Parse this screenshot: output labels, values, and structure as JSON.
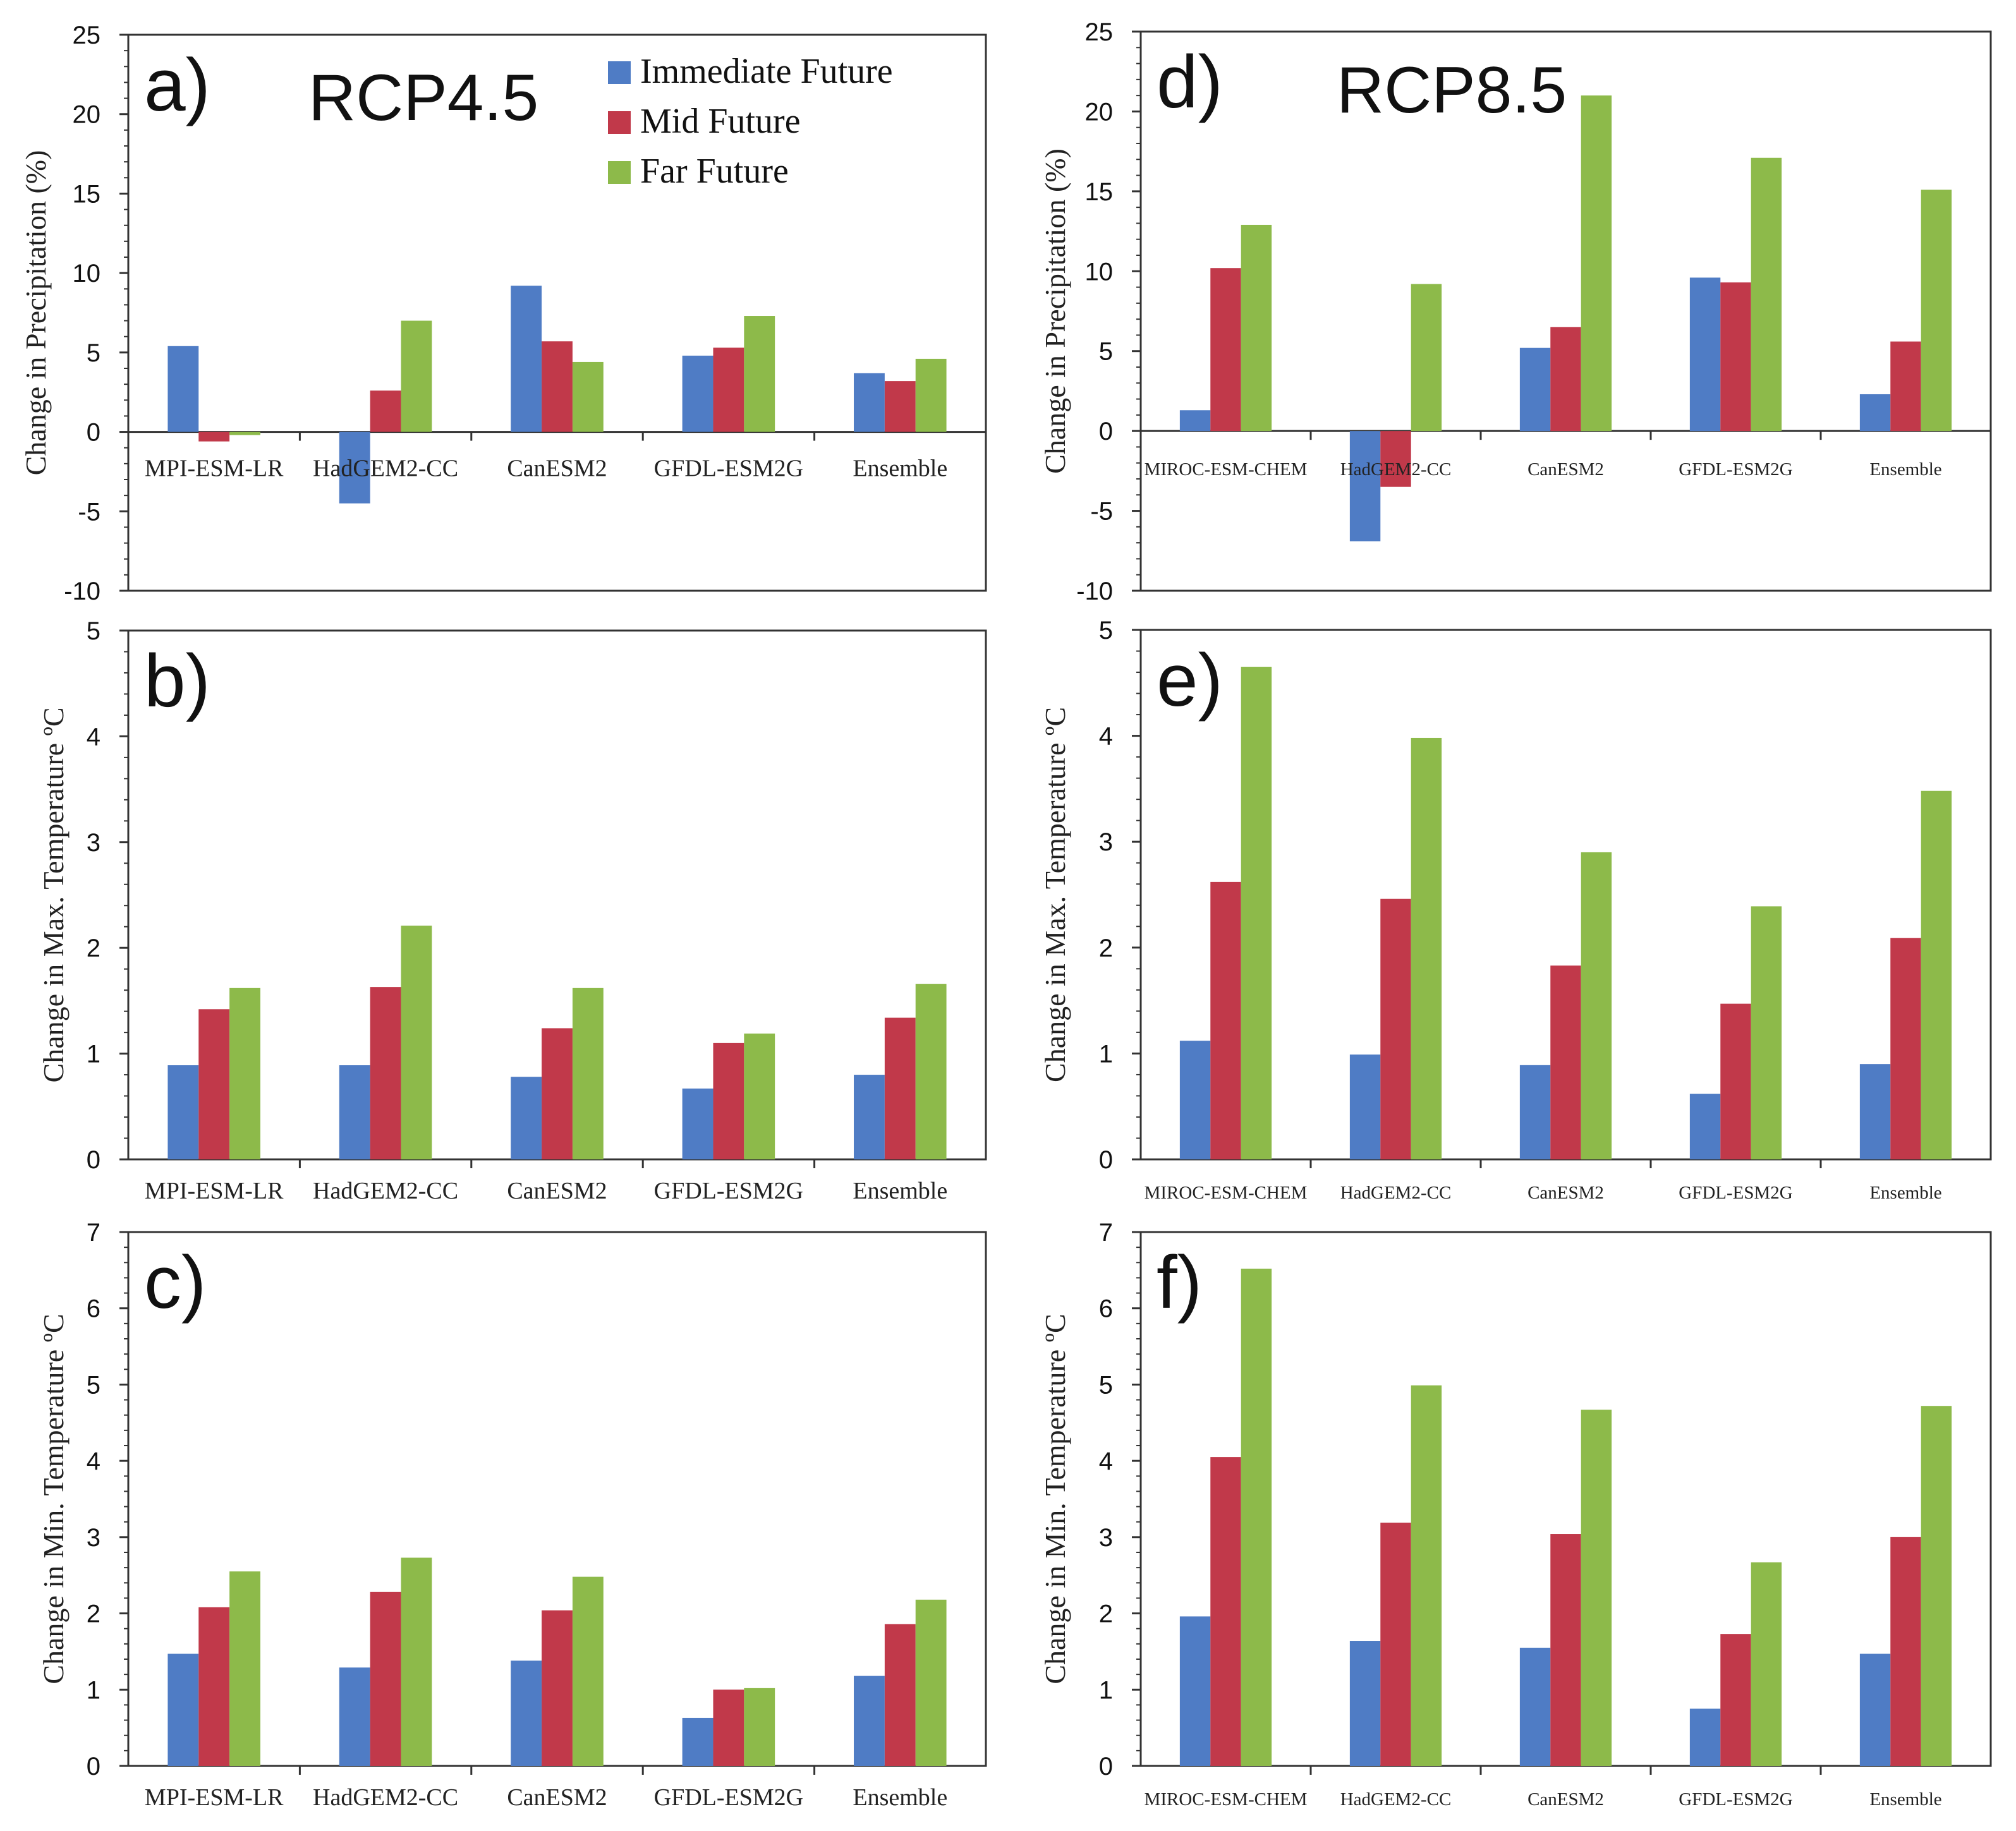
{
  "colors": {
    "immediate": "#4F7CC5",
    "mid": "#C1394A",
    "far": "#8DBA4A",
    "axis": "#333333"
  },
  "legend": [
    {
      "key": "immediate",
      "label": "Immediate Future"
    },
    {
      "key": "mid",
      "label": "Mid Future"
    },
    {
      "key": "far",
      "label": "Far Future"
    }
  ],
  "scenarios": {
    "left": "RCP4.5",
    "right": "RCP8.5"
  },
  "chart_data": [
    {
      "id": "a",
      "panel_label": "a)",
      "type": "bar",
      "scenario": "RCP4.5",
      "ylabel": "Change in Precipitation (%)",
      "ylim": [
        -10,
        25
      ],
      "yticks": [
        -10,
        -5,
        0,
        5,
        10,
        15,
        20,
        25
      ],
      "categories": [
        "MPI-ESM-LR",
        "HadGEM2-CC",
        "CanESM2",
        "GFDL-ESM2G",
        "Ensemble"
      ],
      "series": [
        {
          "name": "Immediate Future",
          "values": [
            5.4,
            -4.5,
            9.2,
            4.8,
            3.7
          ]
        },
        {
          "name": "Mid Future",
          "values": [
            -0.6,
            2.6,
            5.7,
            5.3,
            3.2
          ]
        },
        {
          "name": "Far Future",
          "values": [
            -0.2,
            7.0,
            4.4,
            7.3,
            4.6
          ]
        }
      ]
    },
    {
      "id": "b",
      "panel_label": "b)",
      "type": "bar",
      "scenario": "RCP4.5",
      "ylabel": "Change in Max. Temperature ºC",
      "ylim": [
        0,
        5
      ],
      "yticks": [
        0,
        1,
        2,
        3,
        4,
        5
      ],
      "categories": [
        "MPI-ESM-LR",
        "HadGEM2-CC",
        "CanESM2",
        "GFDL-ESM2G",
        "Ensemble"
      ],
      "series": [
        {
          "name": "Immediate Future",
          "values": [
            0.89,
            0.89,
            0.78,
            0.67,
            0.8
          ]
        },
        {
          "name": "Mid Future",
          "values": [
            1.42,
            1.63,
            1.24,
            1.1,
            1.34
          ]
        },
        {
          "name": "Far Future",
          "values": [
            1.62,
            2.21,
            1.62,
            1.19,
            1.66
          ]
        }
      ]
    },
    {
      "id": "c",
      "panel_label": "c)",
      "type": "bar",
      "scenario": "RCP4.5",
      "ylabel": "Change in Min. Temperature ºC",
      "ylim": [
        0,
        7
      ],
      "yticks": [
        0,
        1,
        2,
        3,
        4,
        5,
        6,
        7
      ],
      "categories": [
        "MPI-ESM-LR",
        "HadGEM2-CC",
        "CanESM2",
        "GFDL-ESM2G",
        "Ensemble"
      ],
      "series": [
        {
          "name": "Immediate Future",
          "values": [
            1.47,
            1.29,
            1.38,
            0.63,
            1.18
          ]
        },
        {
          "name": "Mid Future",
          "values": [
            2.08,
            2.28,
            2.04,
            1.0,
            1.86
          ]
        },
        {
          "name": "Far Future",
          "values": [
            2.55,
            2.73,
            2.48,
            1.02,
            2.18
          ]
        }
      ]
    },
    {
      "id": "d",
      "panel_label": "d)",
      "type": "bar",
      "scenario": "RCP8.5",
      "ylabel": "Change in Precipitation (%)",
      "ylim": [
        -10,
        25
      ],
      "yticks": [
        -10,
        -5,
        0,
        5,
        10,
        15,
        20,
        25
      ],
      "categories": [
        "MIROC-ESM-CHEM",
        "HadGEM2-CC",
        "CanESM2",
        "GFDL-ESM2G",
        "Ensemble"
      ],
      "series": [
        {
          "name": "Immediate Future",
          "values": [
            1.3,
            -6.9,
            5.2,
            9.6,
            2.3
          ]
        },
        {
          "name": "Mid Future",
          "values": [
            10.2,
            -3.5,
            6.5,
            9.3,
            5.6
          ]
        },
        {
          "name": "Far Future",
          "values": [
            12.9,
            9.2,
            21.0,
            17.1,
            15.1
          ]
        }
      ]
    },
    {
      "id": "e",
      "panel_label": "e)",
      "type": "bar",
      "scenario": "RCP8.5",
      "ylabel": "Change in Max. Temperature ºC",
      "ylim": [
        0,
        5
      ],
      "yticks": [
        0,
        1,
        2,
        3,
        4,
        5
      ],
      "categories": [
        "MIROC-ESM-CHEM",
        "HadGEM2-CC",
        "CanESM2",
        "GFDL-ESM2G",
        "Ensemble"
      ],
      "series": [
        {
          "name": "Immediate Future",
          "values": [
            1.12,
            0.99,
            0.89,
            0.62,
            0.9
          ]
        },
        {
          "name": "Mid Future",
          "values": [
            2.62,
            2.46,
            1.83,
            1.47,
            2.09
          ]
        },
        {
          "name": "Far Future",
          "values": [
            4.65,
            3.98,
            2.9,
            2.39,
            3.48
          ]
        }
      ]
    },
    {
      "id": "f",
      "panel_label": "f)",
      "type": "bar",
      "scenario": "RCP8.5",
      "ylabel": "Change in Min. Temperature ºC",
      "ylim": [
        0,
        7
      ],
      "yticks": [
        0,
        1,
        2,
        3,
        4,
        5,
        6,
        7
      ],
      "categories": [
        "MIROC-ESM-CHEM",
        "HadGEM2-CC",
        "CanESM2",
        "GFDL-ESM2G",
        "Ensemble"
      ],
      "series": [
        {
          "name": "Immediate Future",
          "values": [
            1.96,
            1.64,
            1.55,
            0.75,
            1.47
          ]
        },
        {
          "name": "Mid Future",
          "values": [
            4.05,
            3.19,
            3.04,
            1.73,
            3.0
          ]
        },
        {
          "name": "Far Future",
          "values": [
            6.52,
            4.99,
            4.67,
            2.67,
            4.72
          ]
        }
      ]
    }
  ]
}
